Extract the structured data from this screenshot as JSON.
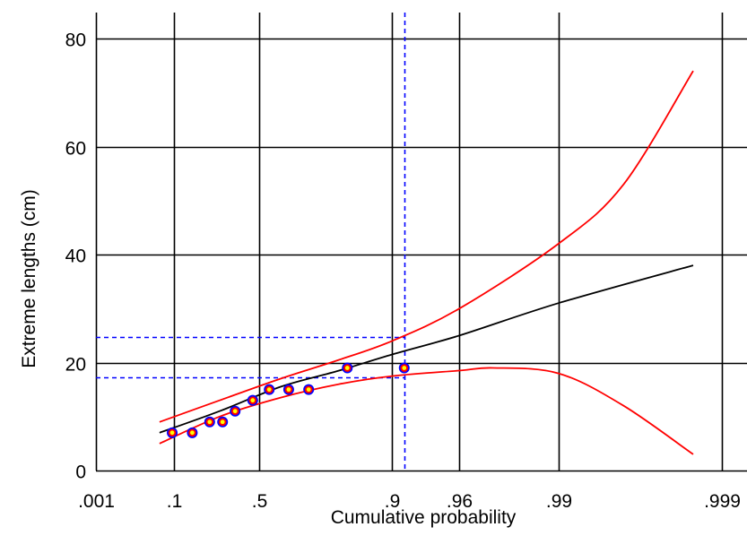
{
  "chart_data": {
    "type": "scatter",
    "title": "",
    "xlabel": "Cumulative probability",
    "ylabel": "Extreme lengths (cm)",
    "x_scale": "gumbel-probability",
    "x_ticks": [
      {
        "value": 0.001,
        "label": ".001"
      },
      {
        "value": 0.1,
        "label": ".1"
      },
      {
        "value": 0.5,
        "label": ".5"
      },
      {
        "value": 0.9,
        "label": ".9"
      },
      {
        "value": 0.96,
        "label": ".96"
      },
      {
        "value": 0.99,
        "label": ".99"
      },
      {
        "value": 0.999,
        "label": ".999"
      }
    ],
    "y_ticks": [
      {
        "value": 0,
        "label": "0"
      },
      {
        "value": 20,
        "label": "20"
      },
      {
        "value": 40,
        "label": "40"
      },
      {
        "value": 60,
        "label": "60"
      },
      {
        "value": 80,
        "label": "80"
      }
    ],
    "ylim": [
      0,
      83
    ],
    "grid": true,
    "legend": "none",
    "colors": {
      "grid": "#000000",
      "fit_line": "#000000",
      "confidence_bands": "#ff0000",
      "reference_lines": "#0000ff",
      "marker_fill": "#ffff00",
      "marker_ring": "#ff0000",
      "marker_outline": "#0000ff"
    },
    "series": [
      {
        "type": "scatter",
        "role": "observations",
        "points": [
          {
            "x": 0.095,
            "y": 7
          },
          {
            "x": 0.17,
            "y": 7
          },
          {
            "x": 0.25,
            "y": 9
          },
          {
            "x": 0.315,
            "y": 9
          },
          {
            "x": 0.38,
            "y": 11
          },
          {
            "x": 0.47,
            "y": 13
          },
          {
            "x": 0.55,
            "y": 15
          },
          {
            "x": 0.635,
            "y": 15
          },
          {
            "x": 0.71,
            "y": 15
          },
          {
            "x": 0.82,
            "y": 19
          },
          {
            "x": 0.915,
            "y": 19
          }
        ]
      },
      {
        "type": "line",
        "role": "fitted",
        "points": [
          {
            "x": 0.06,
            "y": 7
          },
          {
            "x": 0.3,
            "y": 11
          },
          {
            "x": 0.6,
            "y": 15.5
          },
          {
            "x": 0.8,
            "y": 18.5
          },
          {
            "x": 0.9,
            "y": 21.5
          },
          {
            "x": 0.96,
            "y": 25
          },
          {
            "x": 0.99,
            "y": 31
          },
          {
            "x": 0.9985,
            "y": 38
          }
        ]
      },
      {
        "type": "line",
        "role": "upper-band",
        "points": [
          {
            "x": 0.06,
            "y": 9
          },
          {
            "x": 0.3,
            "y": 13
          },
          {
            "x": 0.6,
            "y": 17
          },
          {
            "x": 0.8,
            "y": 20.5
          },
          {
            "x": 0.9,
            "y": 24
          },
          {
            "x": 0.96,
            "y": 30
          },
          {
            "x": 0.99,
            "y": 42
          },
          {
            "x": 0.996,
            "y": 53
          },
          {
            "x": 0.9985,
            "y": 74
          }
        ]
      },
      {
        "type": "line",
        "role": "lower-band",
        "points": [
          {
            "x": 0.06,
            "y": 5
          },
          {
            "x": 0.3,
            "y": 10
          },
          {
            "x": 0.6,
            "y": 13.5
          },
          {
            "x": 0.8,
            "y": 16
          },
          {
            "x": 0.9,
            "y": 17.5
          },
          {
            "x": 0.96,
            "y": 18.5
          },
          {
            "x": 0.975,
            "y": 19
          },
          {
            "x": 0.99,
            "y": 18
          },
          {
            "x": 0.996,
            "y": 12
          },
          {
            "x": 0.9985,
            "y": 3
          }
        ]
      }
    ],
    "reference_lines": [
      {
        "orientation": "vertical",
        "x": 0.915
      },
      {
        "orientation": "horizontal",
        "y": 24.8
      },
      {
        "orientation": "horizontal",
        "y": 17.2
      }
    ]
  }
}
